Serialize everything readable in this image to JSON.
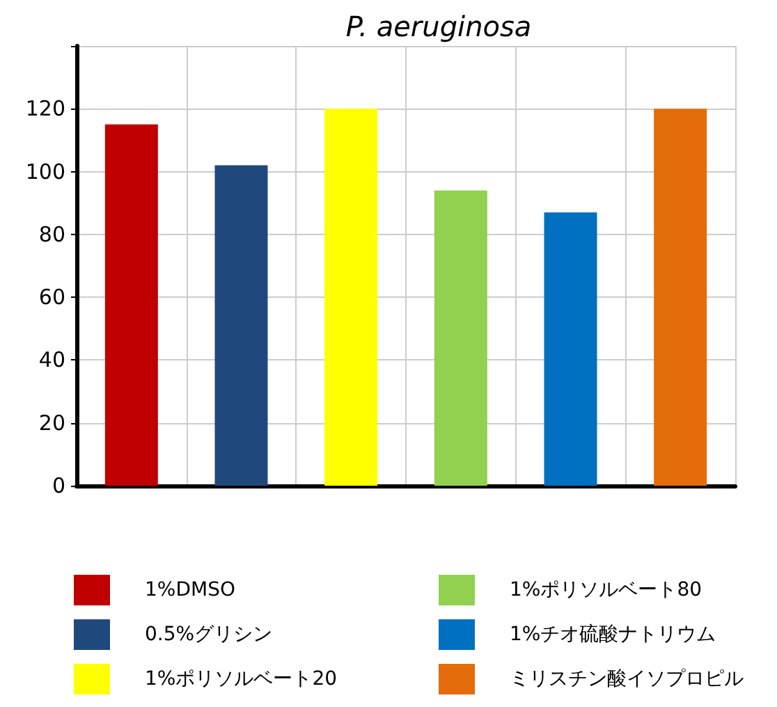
{
  "chart_data": {
    "type": "bar",
    "title": "P. aeruginosa",
    "categories": [
      null,
      null,
      null,
      null,
      null,
      null
    ],
    "series": [
      {
        "name": "1%DMSO",
        "color": "#c00000",
        "values": [
          115,
          null,
          null,
          null,
          null,
          null
        ]
      },
      {
        "name": "0.5%グリシン",
        "color": "#1f497d",
        "values": [
          null,
          102,
          null,
          null,
          null,
          null
        ]
      },
      {
        "name": "1%ポリソルベート20",
        "color": "#ffff00",
        "values": [
          null,
          null,
          120,
          null,
          null,
          null
        ]
      },
      {
        "name": "1%ポリソルベート80",
        "color": "#92d050",
        "values": [
          null,
          null,
          null,
          94,
          null,
          null
        ]
      },
      {
        "name": "1%チオ硫酸ナトリウム",
        "color": "#0070c0",
        "values": [
          null,
          null,
          null,
          null,
          87,
          null
        ]
      },
      {
        "name": "ミリスチン酸イソプロピル",
        "color": "#e46c0a",
        "values": [
          null,
          null,
          null,
          null,
          null,
          120
        ]
      }
    ],
    "ylim": [
      0,
      140
    ],
    "yticks": [
      0,
      20,
      40,
      60,
      80,
      100,
      120,
      {
        "value": 140,
        "label": null
      }
    ],
    "grid": true,
    "legend": "bottom"
  }
}
